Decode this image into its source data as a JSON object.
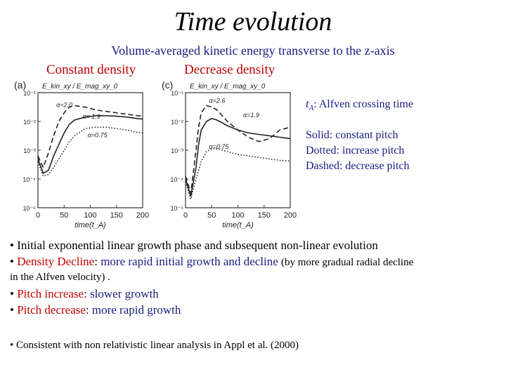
{
  "title": "Time evolution",
  "subtitle": "Volume-averaged kinetic energy transverse to the z-axis",
  "label_constant": "Constant density",
  "label_decrease": "Decrease density",
  "notes": {
    "alfven_sym": "t",
    "alfven_sub": "A",
    "alfven_text": ": Alfven crossing time",
    "solid": "Solid: constant pitch",
    "dotted": "Dotted: increase pitch",
    "dashed": "Dashed: decrease pitch"
  },
  "bullets": {
    "b1": "Initial exponential linear growth phase and subsequent non-linear evolution",
    "b2_red": "Density Decline",
    "b2_colon": ":",
    "b2_blue": "more rapid initial growth and decline",
    "b2_tail": "(by more gradual radial decline",
    "b2_line2": "in the Alfven velocity) .",
    "b3_red": "Pitch increase",
    "b3_blue": ": slower growth",
    "b4_red": "Pitch decrease",
    "b4_blue": ": more rapid growth",
    "b5": "Consistent with non relativistic linear analysis in Appl et al. (2000)"
  },
  "chart_data": [
    {
      "type": "line",
      "panel_label": "(a)",
      "ylabel": "E_kin_xy / E_mag_xy_0",
      "xlabel": "time(t_A)",
      "xlim": [
        0,
        200
      ],
      "ylim_log10": [
        -5,
        -1
      ],
      "xticks": [
        0,
        50,
        100,
        150,
        200
      ],
      "xtick_labels": [
        "0",
        "50",
        "100",
        "150",
        "200"
      ],
      "yticks_log10": [
        -1,
        -2,
        -3,
        -4,
        -5
      ],
      "ytick_labels": [
        "10⁻¹",
        "10⁻²",
        "10⁻³",
        "10⁻⁴",
        "10⁻⁵"
      ],
      "annotations": [
        {
          "text": "α=2.0",
          "x": 35,
          "y_log10": -1.5
        },
        {
          "text": "α= 1.9",
          "x": 85,
          "y_log10": -1.9
        },
        {
          "text": "α=0.75",
          "x": 95,
          "y_log10": -2.55
        }
      ],
      "series": [
        {
          "name": "constant pitch",
          "style": "solid",
          "x": [
            0,
            10,
            20,
            30,
            40,
            50,
            60,
            70,
            90,
            110,
            130,
            150,
            170,
            190,
            200
          ],
          "y_log10": [
            -3.3,
            -3.8,
            -3.7,
            -3.2,
            -2.8,
            -2.4,
            -2.1,
            -1.95,
            -1.85,
            -1.8,
            -1.8,
            -1.82,
            -1.85,
            -1.9,
            -1.92
          ]
        },
        {
          "name": "increase pitch",
          "style": "dotted",
          "x": [
            0,
            10,
            20,
            30,
            40,
            50,
            60,
            70,
            90,
            110,
            130,
            150,
            170,
            190,
            200
          ],
          "y_log10": [
            -3.4,
            -3.9,
            -3.85,
            -3.6,
            -3.3,
            -3.0,
            -2.7,
            -2.5,
            -2.25,
            -2.2,
            -2.2,
            -2.25,
            -2.3,
            -2.38,
            -2.4
          ]
        },
        {
          "name": "decrease pitch",
          "style": "dashed",
          "x": [
            0,
            10,
            20,
            30,
            40,
            50,
            60,
            70,
            90,
            110,
            130,
            150,
            170,
            190,
            200
          ],
          "y_log10": [
            -3.2,
            -3.6,
            -3.1,
            -2.5,
            -2.0,
            -1.7,
            -1.5,
            -1.45,
            -1.5,
            -1.6,
            -1.65,
            -1.7,
            -1.75,
            -1.8,
            -1.82
          ]
        }
      ]
    },
    {
      "type": "line",
      "panel_label": "(c)",
      "ylabel": "E_kin_xy / E_mag_xy_0",
      "xlabel": "time(t_A)",
      "xlim": [
        0,
        200
      ],
      "ylim_log10": [
        -5,
        -1
      ],
      "xticks": [
        0,
        50,
        100,
        150,
        200
      ],
      "xtick_labels": [
        "0",
        "50",
        "100",
        "150",
        "200"
      ],
      "yticks_log10": [
        -1,
        -2,
        -3,
        -4,
        -5
      ],
      "ytick_labels": [
        "10⁻¹",
        "10⁻²",
        "10⁻³",
        "10⁻⁴",
        "10⁻⁵"
      ],
      "annotations": [
        {
          "text": "α=2.6",
          "x": 45,
          "y_log10": -1.35
        },
        {
          "text": "α=1.9",
          "x": 110,
          "y_log10": -1.85
        },
        {
          "text": "α=0.75",
          "x": 45,
          "y_log10": -2.95
        }
      ],
      "series": [
        {
          "name": "constant pitch",
          "style": "solid",
          "x": [
            0,
            10,
            20,
            25,
            30,
            40,
            50,
            60,
            70,
            80,
            100,
            120,
            140,
            160,
            180,
            200
          ],
          "y_log10": [
            -4.0,
            -4.6,
            -3.6,
            -2.8,
            -2.3,
            -2.0,
            -1.9,
            -1.95,
            -2.05,
            -2.15,
            -2.3,
            -2.4,
            -2.45,
            -2.5,
            -2.55,
            -2.6
          ]
        },
        {
          "name": "increase pitch",
          "style": "dotted",
          "x": [
            0,
            10,
            20,
            30,
            40,
            50,
            60,
            80,
            100,
            120,
            140,
            160,
            180,
            200
          ],
          "y_log10": [
            -4.1,
            -4.7,
            -4.0,
            -3.4,
            -3.05,
            -2.95,
            -2.95,
            -3.05,
            -3.15,
            -3.2,
            -3.25,
            -3.3,
            -3.35,
            -3.38
          ]
        },
        {
          "name": "decrease pitch",
          "style": "dashed",
          "x": [
            0,
            10,
            20,
            25,
            30,
            40,
            50,
            60,
            70,
            80,
            100,
            120,
            140,
            160,
            180,
            200
          ],
          "y_log10": [
            -3.9,
            -4.5,
            -3.0,
            -2.2,
            -1.7,
            -1.45,
            -1.5,
            -1.6,
            -1.8,
            -2.0,
            -2.3,
            -2.55,
            -2.7,
            -2.6,
            -2.3,
            -2.2
          ]
        }
      ]
    }
  ]
}
